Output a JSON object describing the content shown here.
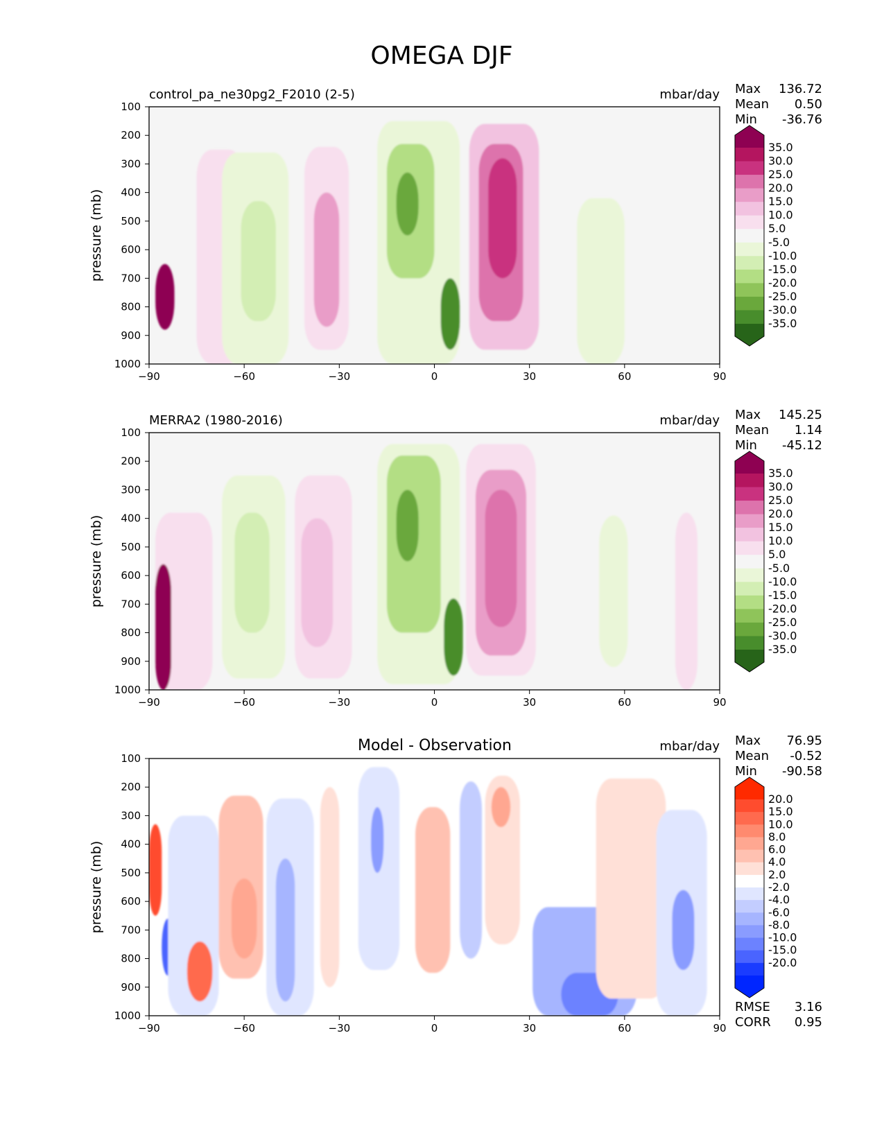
{
  "figure_title": "OMEGA DJF",
  "chart_data": [
    {
      "type": "contourf",
      "title": "control_pa_ne30pg2_F2010 (2-5)",
      "units": "mbar/day",
      "xlabel": "",
      "ylabel": "pressure (mb)",
      "xlim": [
        -90,
        90
      ],
      "ylim": [
        1000,
        100
      ],
      "xticks": [
        "−90",
        "−60",
        "−30",
        "0",
        "30",
        "60",
        "90"
      ],
      "yticks": [
        "100",
        "200",
        "300",
        "400",
        "500",
        "600",
        "700",
        "800",
        "900",
        "1000"
      ],
      "stats": [
        {
          "label": "Max",
          "value": "136.72"
        },
        {
          "label": "Mean",
          "value": "0.50"
        },
        {
          "label": "Min",
          "value": "-36.76"
        }
      ],
      "colorbar": {
        "labels": [
          "35.0",
          "30.0",
          "25.0",
          "20.0",
          "15.0",
          "10.0",
          "5.0",
          "-5.0",
          "-10.0",
          "-15.0",
          "-20.0",
          "-25.0",
          "-30.0",
          "-35.0"
        ],
        "colors": [
          "#8e0152",
          "#b4155f",
          "#c9327f",
          "#dd73ac",
          "#e99dc8",
          "#f2c2e0",
          "#f8dfee",
          "#f5f5f5",
          "#eaf6d8",
          "#d3eeb4",
          "#b3de84",
          "#8fc45a",
          "#6aa83c",
          "#488d2c",
          "#276419"
        ]
      },
      "features": [
        {
          "x": [
            -75,
            -60
          ],
          "p": [
            250,
            1000
          ],
          "value": 7
        },
        {
          "x": [
            -67,
            -46
          ],
          "p": [
            260,
            1000
          ],
          "value": -8
        },
        {
          "x": [
            -61,
            -50
          ],
          "p": [
            430,
            850
          ],
          "value": -13
        },
        {
          "x": [
            -41,
            -27
          ],
          "p": [
            240,
            950
          ],
          "value": 9
        },
        {
          "x": [
            -38,
            -30
          ],
          "p": [
            400,
            870
          ],
          "value": 17
        },
        {
          "x": [
            -18,
            8
          ],
          "p": [
            150,
            1000
          ],
          "value": -9
        },
        {
          "x": [
            -15,
            0
          ],
          "p": [
            230,
            700
          ],
          "value": -18
        },
        {
          "x": [
            -12,
            -5
          ],
          "p": [
            330,
            550
          ],
          "value": -28
        },
        {
          "x": [
            2,
            8
          ],
          "p": [
            700,
            950
          ],
          "value": -32
        },
        {
          "x": [
            11,
            33
          ],
          "p": [
            160,
            950
          ],
          "value": 11
        },
        {
          "x": [
            14,
            28
          ],
          "p": [
            230,
            850
          ],
          "value": 21
        },
        {
          "x": [
            17,
            26
          ],
          "p": [
            280,
            700
          ],
          "value": 27
        },
        {
          "x": [
            45,
            60
          ],
          "p": [
            420,
            1000
          ],
          "value": -7
        },
        {
          "x": [
            -88,
            -82
          ],
          "p": [
            650,
            880
          ],
          "value": 36
        }
      ]
    },
    {
      "type": "contourf",
      "title": "MERRA2 (1980-2016)",
      "units": "mbar/day",
      "xlabel": "",
      "ylabel": "pressure (mb)",
      "xlim": [
        -90,
        90
      ],
      "ylim": [
        1000,
        100
      ],
      "xticks": [
        "−90",
        "−60",
        "−30",
        "0",
        "30",
        "60",
        "90"
      ],
      "yticks": [
        "100",
        "200",
        "300",
        "400",
        "500",
        "600",
        "700",
        "800",
        "900",
        "1000"
      ],
      "stats": [
        {
          "label": "Max",
          "value": "145.25"
        },
        {
          "label": "Mean",
          "value": "1.14"
        },
        {
          "label": "Min",
          "value": "-45.12"
        }
      ],
      "colorbar": {
        "labels": [
          "35.0",
          "30.0",
          "25.0",
          "20.0",
          "15.0",
          "10.0",
          "5.0",
          "-5.0",
          "-10.0",
          "-15.0",
          "-20.0",
          "-25.0",
          "-30.0",
          "-35.0"
        ],
        "colors": [
          "#8e0152",
          "#b4155f",
          "#c9327f",
          "#dd73ac",
          "#e99dc8",
          "#f2c2e0",
          "#f8dfee",
          "#f5f5f5",
          "#eaf6d8",
          "#d3eeb4",
          "#b3de84",
          "#8fc45a",
          "#6aa83c",
          "#488d2c",
          "#276419"
        ]
      },
      "features": [
        {
          "x": [
            -88,
            -70
          ],
          "p": [
            380,
            1000
          ],
          "value": 7
        },
        {
          "x": [
            -67,
            -47
          ],
          "p": [
            250,
            960
          ],
          "value": -8
        },
        {
          "x": [
            -63,
            -52
          ],
          "p": [
            380,
            800
          ],
          "value": -12
        },
        {
          "x": [
            -44,
            -26
          ],
          "p": [
            250,
            960
          ],
          "value": 8
        },
        {
          "x": [
            -42,
            -32
          ],
          "p": [
            400,
            850
          ],
          "value": 13
        },
        {
          "x": [
            -18,
            8
          ],
          "p": [
            140,
            980
          ],
          "value": -9
        },
        {
          "x": [
            -15,
            2
          ],
          "p": [
            180,
            800
          ],
          "value": -18
        },
        {
          "x": [
            -12,
            -5
          ],
          "p": [
            300,
            550
          ],
          "value": -27
        },
        {
          "x": [
            3,
            9
          ],
          "p": [
            680,
            950
          ],
          "value": -34
        },
        {
          "x": [
            10,
            32
          ],
          "p": [
            140,
            950
          ],
          "value": 9
        },
        {
          "x": [
            13,
            29
          ],
          "p": [
            230,
            880
          ],
          "value": 17
        },
        {
          "x": [
            16,
            26
          ],
          "p": [
            300,
            780
          ],
          "value": 22
        },
        {
          "x": [
            52,
            61
          ],
          "p": [
            390,
            920
          ],
          "value": -7
        },
        {
          "x": [
            76,
            83
          ],
          "p": [
            380,
            1000
          ],
          "value": 7
        },
        {
          "x": [
            -88,
            -83
          ],
          "p": [
            560,
            1000
          ],
          "value": 36
        }
      ]
    },
    {
      "type": "contourf",
      "title": "Model - Observation",
      "units": "mbar/day",
      "xlabel": "",
      "ylabel": "pressure (mb)",
      "xlim": [
        -90,
        90
      ],
      "ylim": [
        1000,
        100
      ],
      "xticks": [
        "−90",
        "−60",
        "−30",
        "0",
        "30",
        "60",
        "90"
      ],
      "yticks": [
        "100",
        "200",
        "300",
        "400",
        "500",
        "600",
        "700",
        "800",
        "900",
        "1000"
      ],
      "stats": [
        {
          "label": "Max",
          "value": "76.95"
        },
        {
          "label": "Mean",
          "value": "-0.52"
        },
        {
          "label": "Min",
          "value": "-90.58"
        }
      ],
      "metrics": [
        {
          "label": "RMSE",
          "value": "3.16"
        },
        {
          "label": "CORR",
          "value": "0.95"
        }
      ],
      "colorbar": {
        "labels": [
          "20.0",
          "15.0",
          "10.0",
          "8.0",
          "6.0",
          "4.0",
          "2.0",
          "-2.0",
          "-4.0",
          "-6.0",
          "-8.0",
          "-10.0",
          "-15.0",
          "-20.0"
        ],
        "colors": [
          "#ff2a00",
          "#ff4c2e",
          "#ff6a4e",
          "#ff8a6f",
          "#ffa791",
          "#ffc1b1",
          "#ffe0d7",
          "#ffffff",
          "#e0e6ff",
          "#c3cdff",
          "#a6b5ff",
          "#8a9cff",
          "#6c82ff",
          "#4a64ff",
          "#1a3cff",
          "#0026ff"
        ]
      },
      "features": [
        {
          "x": [
            -90,
            -86
          ],
          "p": [
            330,
            650
          ],
          "value": 16
        },
        {
          "x": [
            -86,
            -82
          ],
          "p": [
            660,
            860
          ],
          "value": -18
        },
        {
          "x": [
            -84,
            -68
          ],
          "p": [
            300,
            1000
          ],
          "value": -3
        },
        {
          "x": [
            -78,
            -70
          ],
          "p": [
            740,
            950
          ],
          "value": 14
        },
        {
          "x": [
            -68,
            -54
          ],
          "p": [
            230,
            870
          ],
          "value": 4
        },
        {
          "x": [
            -64,
            -56
          ],
          "p": [
            520,
            800
          ],
          "value": 6
        },
        {
          "x": [
            -53,
            -38
          ],
          "p": [
            240,
            1000
          ],
          "value": -4
        },
        {
          "x": [
            -50,
            -44
          ],
          "p": [
            450,
            950
          ],
          "value": -7
        },
        {
          "x": [
            -36,
            -30
          ],
          "p": [
            200,
            900
          ],
          "value": 3
        },
        {
          "x": [
            -24,
            -11
          ],
          "p": [
            130,
            840
          ],
          "value": -4
        },
        {
          "x": [
            -20,
            -16
          ],
          "p": [
            270,
            500
          ],
          "value": -9
        },
        {
          "x": [
            -6,
            5
          ],
          "p": [
            270,
            850
          ],
          "value": 4
        },
        {
          "x": [
            8,
            15
          ],
          "p": [
            180,
            800
          ],
          "value": -5
        },
        {
          "x": [
            16,
            27
          ],
          "p": [
            160,
            750
          ],
          "value": 3
        },
        {
          "x": [
            18,
            24
          ],
          "p": [
            200,
            340
          ],
          "value": 7
        },
        {
          "x": [
            31,
            64
          ],
          "p": [
            620,
            1000
          ],
          "value": -8
        },
        {
          "x": [
            40,
            58
          ],
          "p": [
            850,
            1000
          ],
          "value": -14
        },
        {
          "x": [
            51,
            73
          ],
          "p": [
            170,
            940
          ],
          "value": 3
        },
        {
          "x": [
            70,
            86
          ],
          "p": [
            280,
            1000
          ],
          "value": -4
        },
        {
          "x": [
            75,
            82
          ],
          "p": [
            560,
            840
          ],
          "value": -9
        }
      ]
    }
  ]
}
